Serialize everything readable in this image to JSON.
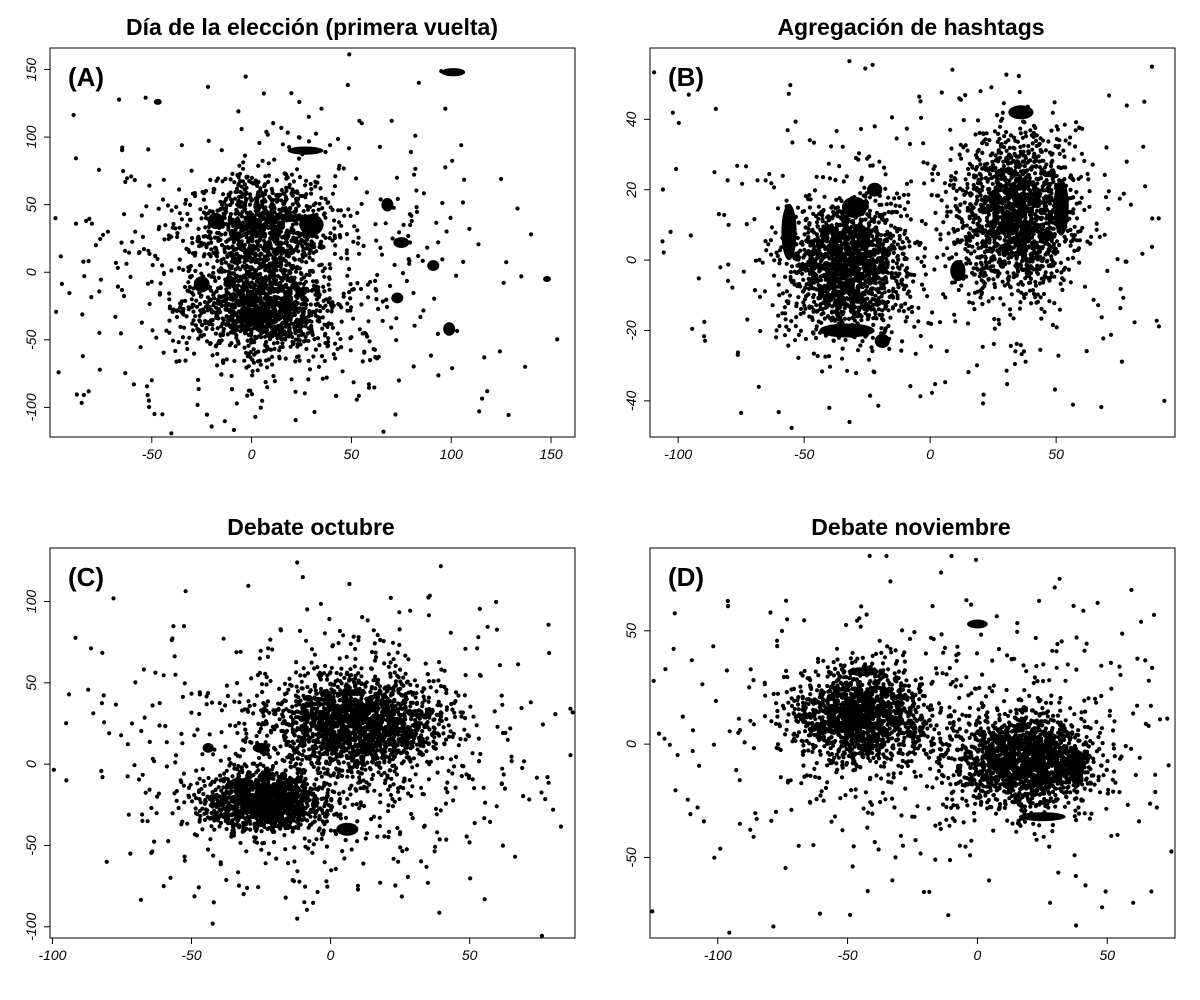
{
  "chart_data": [
    {
      "type": "scatter",
      "tag": "(A)",
      "title": "Día de la elección (primera vuelta)",
      "xlabel": "",
      "ylabel": "",
      "xlim": [
        -97,
        158
      ],
      "ylim": [
        -116,
        160
      ],
      "xticks": [
        -50,
        0,
        50,
        100,
        150
      ],
      "yticks": [
        -100,
        -50,
        0,
        50,
        100,
        150
      ],
      "xtick_labels": [
        "-50",
        "0",
        "50",
        "100",
        "150"
      ],
      "ytick_labels": [
        "-100",
        "-50",
        "0",
        "50",
        "100",
        "150"
      ],
      "grid": false,
      "legend": "none",
      "clusters": [
        {
          "cx": 5,
          "cy": 32,
          "sx": 15,
          "sy": 18,
          "n": 900
        },
        {
          "cx": 5,
          "cy": -28,
          "sx": 17,
          "sy": 16,
          "n": 1100
        }
      ],
      "scatter_spread": {
        "cx": 10,
        "cy": 0,
        "sx": 35,
        "sy": 38,
        "n": 750
      },
      "blobs": [
        [
          101,
          148,
          6,
          3
        ],
        [
          27,
          90,
          9,
          3
        ],
        [
          -47,
          126,
          2,
          1
        ],
        [
          99,
          -42,
          3,
          5
        ],
        [
          -25,
          -9,
          4,
          6
        ],
        [
          91,
          5,
          3,
          4
        ],
        [
          73,
          -19,
          3,
          4
        ],
        [
          30,
          35,
          6,
          8
        ],
        [
          68,
          50,
          3,
          5
        ],
        [
          -18,
          38,
          4,
          6
        ],
        [
          148,
          -5,
          2,
          2
        ],
        [
          75,
          22,
          4,
          4
        ]
      ],
      "outliers": [
        [
          -88,
          36
        ],
        [
          -80,
          36
        ],
        [
          -59,
          -83
        ],
        [
          -50,
          -80
        ],
        [
          -72,
          30
        ],
        [
          -55,
          42
        ],
        [
          114,
          -103
        ],
        [
          118,
          -88
        ],
        [
          137,
          -70
        ],
        [
          140,
          28
        ],
        [
          125,
          69
        ],
        [
          105,
          94
        ],
        [
          82,
          101
        ],
        [
          54,
          112
        ],
        [
          35,
          121
        ],
        [
          -5,
          106
        ],
        [
          -35,
          94
        ],
        [
          -78,
          20
        ]
      ],
      "color": "#000000"
    },
    {
      "type": "scatter",
      "tag": "(B)",
      "title": "Agregación de hashtags",
      "xlabel": "",
      "ylabel": "",
      "xlim": [
        -108,
        94
      ],
      "ylim": [
        -48,
        58
      ],
      "xticks": [
        -100,
        -50,
        0,
        50
      ],
      "yticks": [
        -40,
        -20,
        0,
        20,
        40
      ],
      "xtick_labels": [
        "-100",
        "-50",
        "0",
        "50"
      ],
      "ytick_labels": [
        "-40",
        "-20",
        "0",
        "20",
        "40"
      ],
      "grid": false,
      "legend": "none",
      "clusters": [
        {
          "cx": -33,
          "cy": -2,
          "sx": 11,
          "sy": 9,
          "n": 1600
        },
        {
          "cx": 35,
          "cy": 13,
          "sx": 11,
          "sy": 11,
          "n": 1600
        }
      ],
      "scatter_spread": {
        "cx": 0,
        "cy": 5,
        "sx": 40,
        "sy": 16,
        "n": 500
      },
      "blobs": [
        [
          -56,
          8,
          3,
          8
        ],
        [
          -33,
          -20,
          11,
          2
        ],
        [
          36,
          42,
          5,
          2
        ],
        [
          11,
          -3,
          3,
          3
        ],
        [
          -22,
          20,
          3,
          2
        ],
        [
          -19,
          -23,
          3,
          2
        ],
        [
          52,
          15,
          3,
          8
        ],
        [
          -30,
          15,
          5,
          3
        ]
      ],
      "outliers": [
        [
          -103,
          8
        ],
        [
          -95,
          7
        ],
        [
          -80,
          10
        ],
        [
          -68,
          -36
        ],
        [
          -40,
          -42
        ],
        [
          -32,
          -46
        ],
        [
          88,
          55
        ],
        [
          85,
          45
        ],
        [
          78,
          28
        ],
        [
          -8,
          33
        ],
        [
          -22,
          38
        ],
        [
          70,
          32
        ],
        [
          20,
          48
        ]
      ],
      "color": "#000000"
    },
    {
      "type": "scatter",
      "tag": "(C)",
      "title": "Debate octubre",
      "xlabel": "",
      "ylabel": "",
      "xlim": [
        -98,
        85
      ],
      "ylim": [
        -102,
        128
      ],
      "xticks": [
        -100,
        -50,
        0,
        50
      ],
      "yticks": [
        -100,
        -50,
        0,
        50,
        100
      ],
      "xtick_labels": [
        "-100",
        "-50",
        "0",
        "50"
      ],
      "ytick_labels": [
        "-100",
        "-50",
        "0",
        "50",
        "100"
      ],
      "grid": false,
      "legend": "none",
      "clusters": [
        {
          "cx": 10,
          "cy": 25,
          "sx": 14,
          "sy": 14,
          "n": 1700
        },
        {
          "cx": -24,
          "cy": -23,
          "sx": 10,
          "sy": 9,
          "n": 1300
        }
      ],
      "scatter_spread": {
        "cx": -2,
        "cy": 0,
        "sx": 26,
        "sy": 30,
        "n": 800
      },
      "blobs": [
        [
          -44,
          10,
          2,
          3
        ],
        [
          -25,
          10,
          3,
          3
        ],
        [
          8,
          44,
          5,
          2
        ],
        [
          6,
          -40,
          4,
          4
        ]
      ],
      "outliers": [
        [
          -95,
          -10
        ],
        [
          -82,
          -8
        ],
        [
          -72,
          -55
        ],
        [
          -60,
          -75
        ],
        [
          -42,
          -85
        ],
        [
          -12,
          -95
        ],
        [
          -12,
          124
        ],
        [
          -10,
          115
        ],
        [
          -18,
          83
        ],
        [
          78,
          -8
        ],
        [
          80,
          -28
        ],
        [
          72,
          38
        ],
        [
          35,
          -73
        ]
      ],
      "color": "#000000"
    },
    {
      "type": "scatter",
      "tag": "(D)",
      "title": "Debate noviembre",
      "xlabel": "",
      "ylabel": "",
      "xlim": [
        -123,
        73
      ],
      "ylim": [
        -82,
        83
      ],
      "xticks": [
        -100,
        -50,
        0,
        50
      ],
      "yticks": [
        -50,
        0,
        50
      ],
      "xtick_labels": [
        "-100",
        "-50",
        "0",
        "50"
      ],
      "ytick_labels": [
        "-50",
        "0",
        "50"
      ],
      "grid": false,
      "legend": "none",
      "clusters": [
        {
          "cx": -45,
          "cy": 12,
          "sx": 12,
          "sy": 10,
          "n": 1400
        },
        {
          "cx": 19,
          "cy": -8,
          "sx": 13,
          "sy": 10,
          "n": 1600
        }
      ],
      "scatter_spread": {
        "cx": -12,
        "cy": 4,
        "sx": 32,
        "sy": 20,
        "n": 650
      },
      "blobs": [
        [
          0,
          53,
          4,
          2
        ],
        [
          -44,
          32,
          6,
          2
        ],
        [
          38,
          -10,
          3,
          8
        ],
        [
          25,
          -32,
          9,
          2
        ]
      ],
      "outliers": [
        [
          -117,
          42
        ],
        [
          -110,
          37
        ],
        [
          -85,
          -33
        ],
        [
          -35,
          83
        ],
        [
          -10,
          83
        ],
        [
          37,
          61
        ],
        [
          68,
          57
        ],
        [
          67,
          -65
        ],
        [
          60,
          -70
        ],
        [
          48,
          -72
        ],
        [
          38,
          -80
        ],
        [
          28,
          -70
        ],
        [
          66,
          28
        ]
      ],
      "color": "#000000"
    }
  ]
}
